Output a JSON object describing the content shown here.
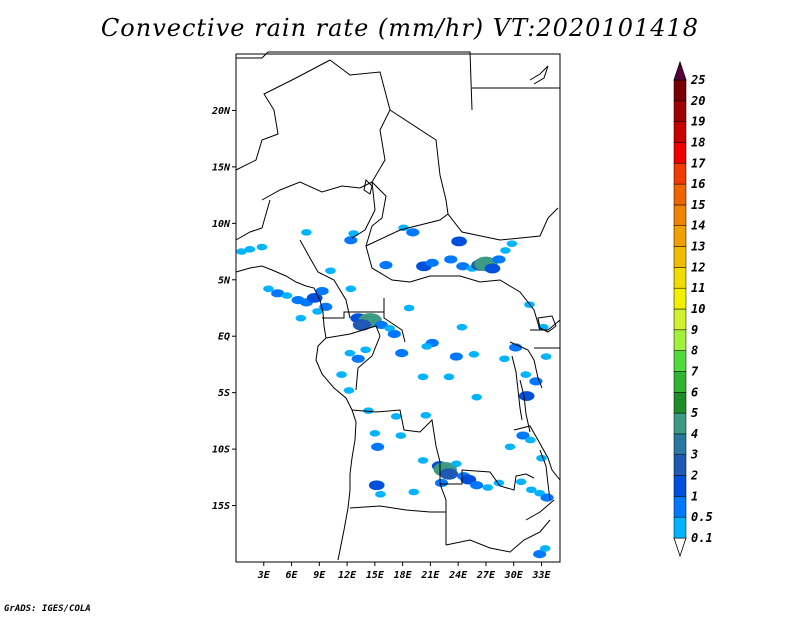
{
  "title": "Convective rain rate (mm/hr) VT:2020101418",
  "credit": "GrADS: IGES/COLA",
  "map": {
    "lon_range": [
      0,
      35
    ],
    "lat_range": [
      -20,
      25
    ],
    "lon_ticks": [
      {
        "value": 3,
        "label": "3E"
      },
      {
        "value": 6,
        "label": "6E"
      },
      {
        "value": 9,
        "label": "9E"
      },
      {
        "value": 12,
        "label": "12E"
      },
      {
        "value": 15,
        "label": "15E"
      },
      {
        "value": 18,
        "label": "18E"
      },
      {
        "value": 21,
        "label": "21E"
      },
      {
        "value": 24,
        "label": "24E"
      },
      {
        "value": 27,
        "label": "27E"
      },
      {
        "value": 30,
        "label": "30E"
      },
      {
        "value": 33,
        "label": "33E"
      }
    ],
    "lat_ticks": [
      {
        "value": 20,
        "label": "20N"
      },
      {
        "value": 15,
        "label": "15N"
      },
      {
        "value": 10,
        "label": "10N"
      },
      {
        "value": 5,
        "label": "5N"
      },
      {
        "value": 0,
        "label": "EQ"
      },
      {
        "value": -5,
        "label": "5S"
      },
      {
        "value": -10,
        "label": "10S"
      },
      {
        "value": -15,
        "label": "15S"
      }
    ]
  },
  "colorbar": {
    "levels": [
      "0.1",
      "0.5",
      "1",
      "2",
      "3",
      "4",
      "5",
      "6",
      "7",
      "8",
      "9",
      "10",
      "11",
      "12",
      "13",
      "14",
      "15",
      "16",
      "17",
      "18",
      "19",
      "20",
      "25"
    ],
    "colors": [
      "#ffffff",
      "#00b4ff",
      "#0078ff",
      "#0050dc",
      "#1e5ab4",
      "#2878a0",
      "#3c9b82",
      "#1e8c28",
      "#32b432",
      "#50dc3c",
      "#a0f03c",
      "#d2f032",
      "#f0f000",
      "#f0dc00",
      "#f0be00",
      "#f0a000",
      "#f08200",
      "#f06400",
      "#f03c00",
      "#f00000",
      "#c80000",
      "#a00000",
      "#780000",
      "#5a003c",
      "#6e0064"
    ]
  },
  "rain_cells": [
    {
      "lon": 0.6,
      "lat": 7.5,
      "level": 1
    },
    {
      "lon": 1.5,
      "lat": 7.7,
      "level": 1
    },
    {
      "lon": 2.8,
      "lat": 7.9,
      "level": 1
    },
    {
      "lon": 3.5,
      "lat": 4.2,
      "level": 1
    },
    {
      "lon": 4.5,
      "lat": 3.8,
      "level": 2
    },
    {
      "lon": 5.5,
      "lat": 3.6,
      "level": 1
    },
    {
      "lon": 6.7,
      "lat": 3.2,
      "level": 2
    },
    {
      "lon": 7.6,
      "lat": 3.0,
      "level": 2
    },
    {
      "lon": 8.5,
      "lat": 3.4,
      "level": 3
    },
    {
      "lon": 9.3,
      "lat": 4.0,
      "level": 2
    },
    {
      "lon": 8.8,
      "lat": 2.2,
      "level": 1
    },
    {
      "lon": 7.0,
      "lat": 1.6,
      "level": 1
    },
    {
      "lon": 9.7,
      "lat": 2.6,
      "level": 2
    },
    {
      "lon": 10.2,
      "lat": 5.8,
      "level": 1
    },
    {
      "lon": 12.4,
      "lat": 4.2,
      "level": 1
    },
    {
      "lon": 13.2,
      "lat": 1.6,
      "level": 3
    },
    {
      "lon": 14.5,
      "lat": 1.4,
      "level": 6
    },
    {
      "lon": 13.6,
      "lat": 1.0,
      "level": 4
    },
    {
      "lon": 15.7,
      "lat": 1.0,
      "level": 2
    },
    {
      "lon": 16.6,
      "lat": 0.7,
      "level": 1
    },
    {
      "lon": 17.1,
      "lat": 0.2,
      "level": 2
    },
    {
      "lon": 14.0,
      "lat": -1.2,
      "level": 1
    },
    {
      "lon": 13.2,
      "lat": -2.0,
      "level": 2
    },
    {
      "lon": 12.3,
      "lat": -1.5,
      "level": 1
    },
    {
      "lon": 17.9,
      "lat": -1.5,
      "level": 2
    },
    {
      "lon": 18.7,
      "lat": 2.5,
      "level": 1
    },
    {
      "lon": 12.7,
      "lat": 9.1,
      "level": 1
    },
    {
      "lon": 12.4,
      "lat": 8.5,
      "level": 2
    },
    {
      "lon": 7.6,
      "lat": 9.2,
      "level": 1
    },
    {
      "lon": 18.1,
      "lat": 9.6,
      "level": 1
    },
    {
      "lon": 19.1,
      "lat": 9.2,
      "level": 2
    },
    {
      "lon": 16.2,
      "lat": 6.3,
      "level": 2
    },
    {
      "lon": 20.3,
      "lat": 6.2,
      "level": 3
    },
    {
      "lon": 21.2,
      "lat": 6.5,
      "level": 2
    },
    {
      "lon": 23.2,
      "lat": 6.8,
      "level": 2
    },
    {
      "lon": 24.1,
      "lat": 8.4,
      "level": 3
    },
    {
      "lon": 24.5,
      "lat": 6.2,
      "level": 2
    },
    {
      "lon": 25.5,
      "lat": 6.0,
      "level": 1
    },
    {
      "lon": 26.4,
      "lat": 6.3,
      "level": 4
    },
    {
      "lon": 27.0,
      "lat": 6.4,
      "level": 6
    },
    {
      "lon": 27.7,
      "lat": 6.0,
      "level": 3
    },
    {
      "lon": 28.4,
      "lat": 6.8,
      "level": 2
    },
    {
      "lon": 29.1,
      "lat": 7.6,
      "level": 1
    },
    {
      "lon": 29.8,
      "lat": 8.2,
      "level": 1
    },
    {
      "lon": 21.2,
      "lat": -0.6,
      "level": 2
    },
    {
      "lon": 20.6,
      "lat": -0.9,
      "level": 1
    },
    {
      "lon": 23.8,
      "lat": -1.8,
      "level": 2
    },
    {
      "lon": 25.7,
      "lat": -1.6,
      "level": 1
    },
    {
      "lon": 24.4,
      "lat": 0.8,
      "level": 1
    },
    {
      "lon": 23.0,
      "lat": -3.6,
      "level": 1
    },
    {
      "lon": 20.2,
      "lat": -3.6,
      "level": 1
    },
    {
      "lon": 26.0,
      "lat": -5.4,
      "level": 1
    },
    {
      "lon": 29.0,
      "lat": -2.0,
      "level": 1
    },
    {
      "lon": 30.2,
      "lat": -1.0,
      "level": 2
    },
    {
      "lon": 31.3,
      "lat": -3.4,
      "level": 1
    },
    {
      "lon": 32.4,
      "lat": -4.0,
      "level": 2
    },
    {
      "lon": 31.4,
      "lat": -5.3,
      "level": 3
    },
    {
      "lon": 33.5,
      "lat": -1.8,
      "level": 1
    },
    {
      "lon": 31.7,
      "lat": 2.8,
      "level": 1
    },
    {
      "lon": 33.2,
      "lat": 0.8,
      "level": 1
    },
    {
      "lon": 11.4,
      "lat": -3.4,
      "level": 1
    },
    {
      "lon": 12.2,
      "lat": -4.8,
      "level": 1
    },
    {
      "lon": 14.3,
      "lat": -6.6,
      "level": 1
    },
    {
      "lon": 17.3,
      "lat": -7.1,
      "level": 1
    },
    {
      "lon": 20.5,
      "lat": -7.0,
      "level": 1
    },
    {
      "lon": 15.0,
      "lat": -8.6,
      "level": 1
    },
    {
      "lon": 15.3,
      "lat": -9.8,
      "level": 2
    },
    {
      "lon": 17.8,
      "lat": -8.8,
      "level": 1
    },
    {
      "lon": 20.2,
      "lat": -11.0,
      "level": 1
    },
    {
      "lon": 22.0,
      "lat": -11.5,
      "level": 3
    },
    {
      "lon": 22.6,
      "lat": -11.8,
      "level": 6
    },
    {
      "lon": 23.0,
      "lat": -12.2,
      "level": 4
    },
    {
      "lon": 23.8,
      "lat": -11.3,
      "level": 1
    },
    {
      "lon": 24.6,
      "lat": -12.4,
      "level": 2
    },
    {
      "lon": 25.1,
      "lat": -12.7,
      "level": 3
    },
    {
      "lon": 22.2,
      "lat": -13.0,
      "level": 2
    },
    {
      "lon": 26.0,
      "lat": -13.2,
      "level": 2
    },
    {
      "lon": 27.2,
      "lat": -13.4,
      "level": 1
    },
    {
      "lon": 28.4,
      "lat": -13.0,
      "level": 1
    },
    {
      "lon": 29.6,
      "lat": -9.8,
      "level": 1
    },
    {
      "lon": 31.0,
      "lat": -8.8,
      "level": 2
    },
    {
      "lon": 31.8,
      "lat": -9.2,
      "level": 1
    },
    {
      "lon": 33.0,
      "lat": -10.8,
      "level": 1
    },
    {
      "lon": 30.8,
      "lat": -12.9,
      "level": 1
    },
    {
      "lon": 31.9,
      "lat": -13.6,
      "level": 1
    },
    {
      "lon": 32.8,
      "lat": -13.9,
      "level": 1
    },
    {
      "lon": 33.6,
      "lat": -14.3,
      "level": 2
    },
    {
      "lon": 15.2,
      "lat": -13.2,
      "level": 3
    },
    {
      "lon": 15.6,
      "lat": -14.0,
      "level": 1
    },
    {
      "lon": 19.2,
      "lat": -13.8,
      "level": 1
    },
    {
      "lon": 32.8,
      "lat": -19.3,
      "level": 2
    },
    {
      "lon": 33.4,
      "lat": -18.8,
      "level": 1
    }
  ]
}
